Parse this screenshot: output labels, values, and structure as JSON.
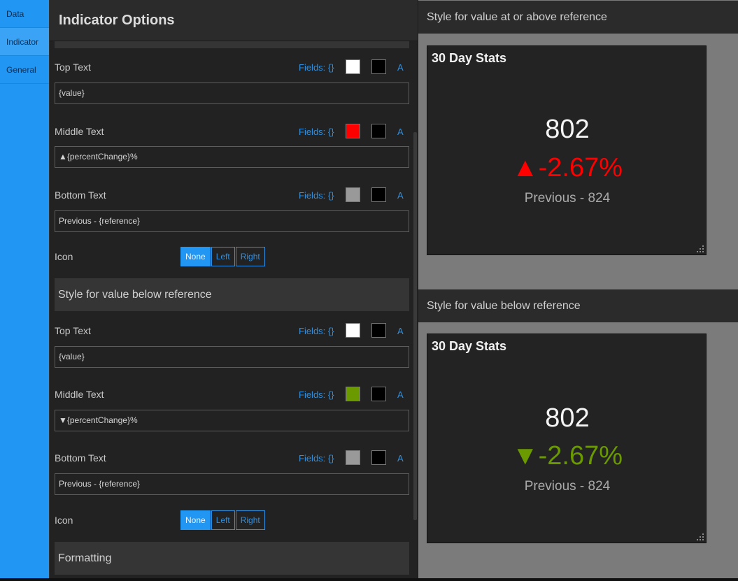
{
  "tabs": [
    {
      "label": "Data"
    },
    {
      "label": "Indicator"
    },
    {
      "label": "General"
    }
  ],
  "panel": {
    "title": "Indicator Options",
    "fields_label": "Fields: {}",
    "a_label": "A",
    "icon_label": "Icon",
    "icon_options": [
      "None",
      "Left",
      "Right"
    ],
    "above": {
      "top": {
        "label": "Top Text",
        "value": "{value}",
        "text_color": "#ffffff",
        "bg_color": "#000000"
      },
      "middle": {
        "label": "Middle Text",
        "value": "▲{percentChange}%",
        "text_color": "#ff0000",
        "bg_color": "#000000"
      },
      "bottom": {
        "label": "Bottom Text",
        "value": "Previous - {reference}",
        "text_color": "#999999",
        "bg_color": "#000000"
      },
      "icon_selected": "None"
    },
    "below_section_title": "Style for value below reference",
    "below": {
      "top": {
        "label": "Top Text",
        "value": "{value}",
        "text_color": "#ffffff",
        "bg_color": "#000000"
      },
      "middle": {
        "label": "Middle Text",
        "value": "▼{percentChange}%",
        "text_color": "#6a9a00",
        "bg_color": "#000000"
      },
      "bottom": {
        "label": "Bottom Text",
        "value": "Previous - {reference}",
        "text_color": "#999999",
        "bg_color": "#000000"
      },
      "icon_selected": "None"
    },
    "formatting_title": "Formatting"
  },
  "preview": {
    "above": {
      "heading": "Style for value at or above reference",
      "card_title": "30 Day Stats",
      "top": "802",
      "middle": "▲-2.67%",
      "middle_color": "#ff0000",
      "bottom": "Previous - 824"
    },
    "below": {
      "heading": "Style for value below reference",
      "card_title": "30 Day Stats",
      "top": "802",
      "middle": "▼-2.67%",
      "middle_color": "#6a9a00",
      "bottom": "Previous - 824"
    }
  }
}
